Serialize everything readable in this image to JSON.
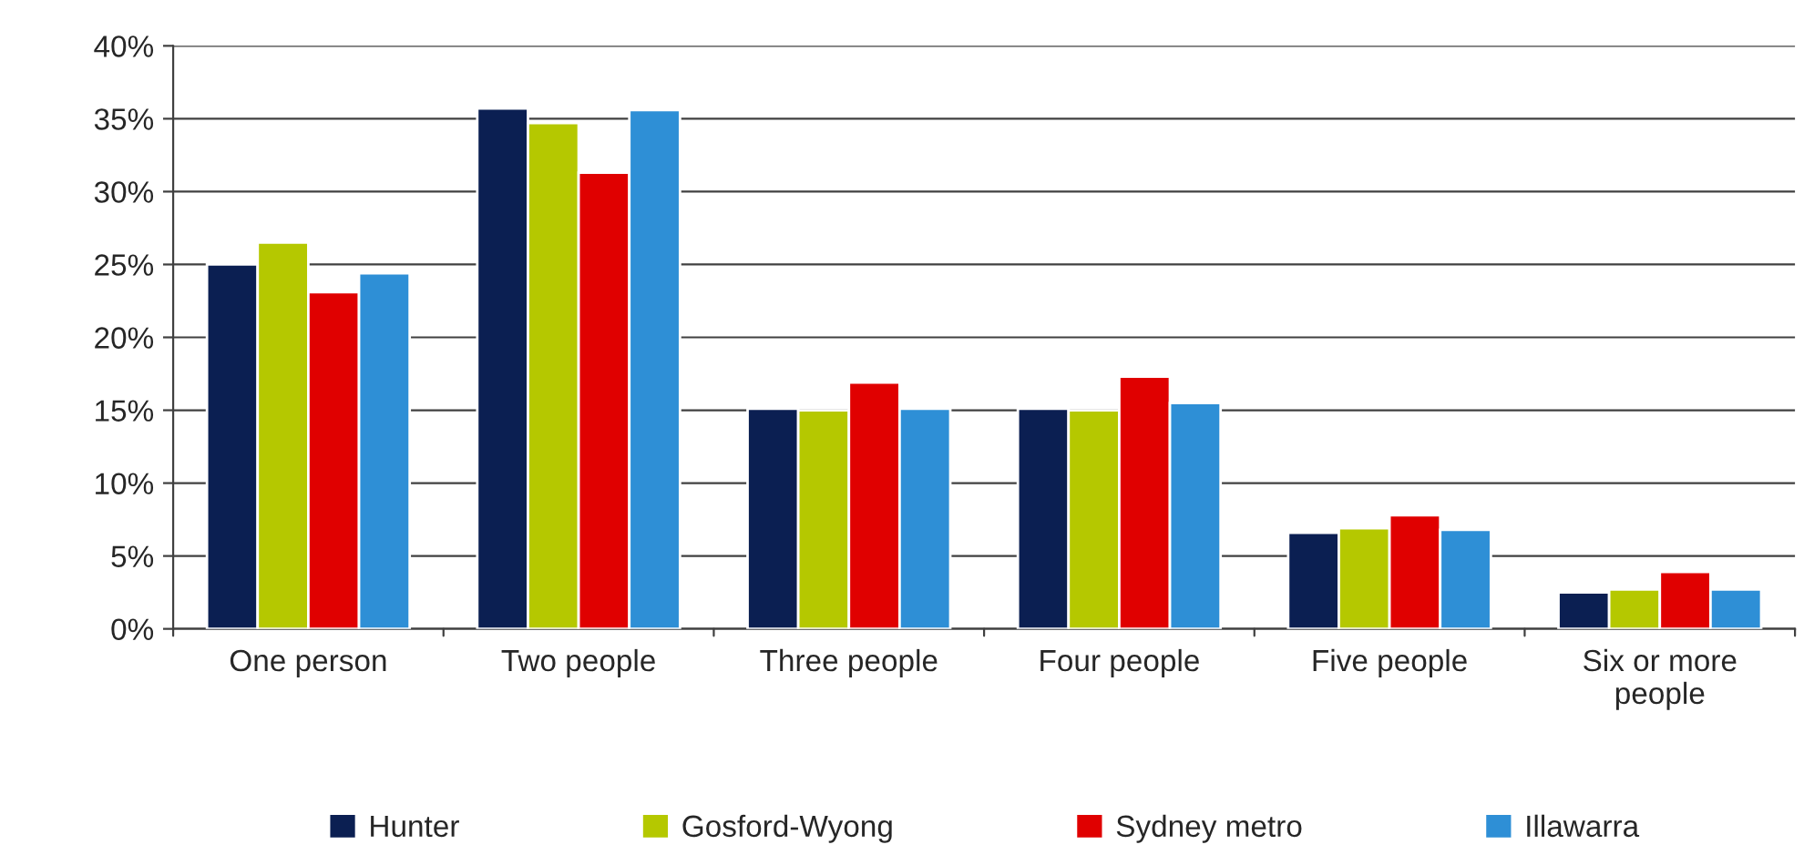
{
  "chart_data": {
    "type": "bar",
    "categories": [
      "One person",
      "Two people",
      "Three people",
      "Four people",
      "Five people",
      "Six or more\npeople"
    ],
    "series": [
      {
        "name": "Hunter",
        "color": "#0b1f52",
        "values": [
          25.0,
          35.7,
          15.1,
          15.1,
          6.6,
          2.5
        ]
      },
      {
        "name": "Gosford-Wyong",
        "color": "#b5c800",
        "values": [
          26.5,
          34.7,
          15.0,
          15.0,
          6.9,
          2.7
        ]
      },
      {
        "name": "Sydney metro",
        "color": "#e00000",
        "values": [
          23.1,
          31.3,
          16.9,
          17.3,
          7.8,
          3.9
        ]
      },
      {
        "name": "Illawarra",
        "color": "#2e8fd6",
        "values": [
          24.4,
          35.6,
          15.1,
          15.5,
          6.8,
          2.7
        ]
      }
    ],
    "ylim": [
      0,
      40
    ],
    "yticks": [
      {
        "value": 0,
        "label": "0%"
      },
      {
        "value": 5,
        "label": "5%"
      },
      {
        "value": 10,
        "label": "10%"
      },
      {
        "value": 15,
        "label": "15%"
      },
      {
        "value": 20,
        "label": "20%"
      },
      {
        "value": 25,
        "label": "25%"
      },
      {
        "value": 30,
        "label": "30%"
      },
      {
        "value": 35,
        "label": "35%"
      },
      {
        "value": 40,
        "label": "40%"
      }
    ],
    "grid": "y",
    "legend": "bottom"
  }
}
